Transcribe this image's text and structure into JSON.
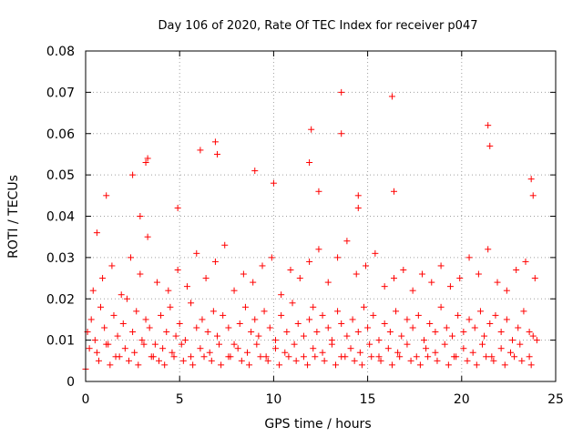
{
  "chart_data": {
    "type": "scatter",
    "title": "Day 106 of 2020, Rate Of TEC Index for receiver p047",
    "xlabel": "GPS time / hours",
    "ylabel": "ROTI / TECUs",
    "xlim": [
      0,
      25
    ],
    "ylim": [
      0,
      0.08
    ],
    "xticks": [
      0,
      5,
      10,
      15,
      20,
      25
    ],
    "yticks": [
      0,
      0.01,
      0.02,
      0.03,
      0.04,
      0.05,
      0.06,
      0.07,
      0.08
    ],
    "xtick_labels": [
      "0",
      "5",
      "10",
      "15",
      "20",
      "25"
    ],
    "ytick_labels": [
      "0",
      "0.01",
      "0.02",
      "0.03",
      "0.04",
      "0.05",
      "0.06",
      "0.07",
      "0.08"
    ],
    "grid": true,
    "marker": "+",
    "marker_color": "#ff0000",
    "series": [
      {
        "x": [
          0.1,
          0.3,
          0.5,
          0.8,
          1.0,
          1.2,
          1.5,
          1.7,
          2.0,
          2.2,
          2.5,
          2.7,
          3.0,
          3.2,
          3.4,
          3.7,
          4.0,
          4.3,
          4.5,
          4.8,
          5.0,
          5.3,
          5.6,
          5.9,
          6.2,
          6.5,
          6.8,
          7.0,
          7.3,
          7.6,
          7.9,
          8.2,
          8.5,
          8.8,
          9.0,
          9.2,
          9.5,
          9.8,
          10.1,
          10.4,
          10.7,
          11.0,
          11.3,
          11.6,
          11.9,
          12.1,
          12.3,
          12.6,
          12.9,
          13.1,
          13.4,
          13.6,
          13.9,
          14.2,
          14.5,
          14.8,
          15.0,
          15.3,
          15.6,
          15.9,
          16.2,
          16.5,
          16.8,
          17.1,
          17.4,
          17.7,
          18.0,
          18.3,
          18.6,
          18.9,
          19.2,
          19.5,
          19.8,
          20.1,
          20.4,
          20.7,
          21.0,
          21.2,
          21.5,
          21.8,
          22.1,
          22.4,
          22.7,
          23.0,
          23.3,
          23.6,
          23.8,
          0.2,
          0.6,
          1.1,
          1.6,
          2.1,
          2.6,
          3.1,
          3.6,
          4.1,
          4.6,
          5.1,
          5.6,
          6.1,
          6.6,
          7.1,
          7.6,
          8.1,
          8.6,
          9.1,
          9.6,
          10.1,
          10.6,
          11.1,
          11.6,
          12.1,
          12.6,
          13.1,
          13.6,
          14.1,
          14.6,
          15.1,
          15.6,
          16.1,
          16.6,
          17.1,
          17.6,
          18.1,
          18.6,
          19.1,
          19.6,
          20.1,
          20.6,
          21.1,
          21.6,
          22.1,
          22.6,
          23.1,
          23.6,
          0.4,
          0.9,
          1.4,
          1.9,
          2.4,
          2.9,
          3.3,
          3.8,
          4.4,
          4.9,
          5.4,
          5.9,
          6.4,
          6.9,
          7.4,
          7.9,
          8.4,
          8.9,
          9.4,
          9.9,
          10.4,
          10.9,
          11.4,
          11.9,
          12.4,
          12.9,
          13.4,
          13.9,
          14.4,
          14.9,
          15.4,
          15.9,
          16.4,
          16.9,
          17.4,
          17.9,
          18.4,
          18.9,
          19.4,
          19.9,
          20.4,
          20.9,
          21.4,
          21.9,
          22.4,
          22.9,
          23.4,
          23.9,
          0.7,
          1.3,
          1.8,
          2.3,
          2.8,
          3.5,
          3.9,
          4.2,
          4.7,
          5.2,
          5.7,
          6.3,
          6.7,
          7.2,
          7.7,
          8.3,
          8.7,
          9.3,
          9.7,
          10.3,
          10.8,
          11.2,
          11.8,
          12.2,
          12.7,
          13.3,
          13.8,
          14.3,
          14.7,
          15.2,
          15.7,
          16.3,
          16.7,
          17.3,
          17.8,
          18.2,
          18.7,
          19.3,
          19.7,
          20.3,
          20.8,
          21.3,
          21.7,
          22.3,
          22.8,
          23.2,
          23.7,
          0.6,
          1.1,
          2.5,
          2.9,
          3.2,
          3.3,
          4.9,
          6.1,
          6.9,
          7.0,
          9.0,
          10.0,
          11.9,
          12.0,
          12.4,
          13.6,
          13.6,
          14.5,
          14.5,
          16.3,
          16.4,
          21.4,
          21.5,
          23.7,
          23.8,
          0.0,
          24.0
        ],
        "y": [
          0.012,
          0.015,
          0.01,
          0.018,
          0.013,
          0.009,
          0.016,
          0.011,
          0.014,
          0.02,
          0.012,
          0.017,
          0.01,
          0.015,
          0.013,
          0.009,
          0.016,
          0.012,
          0.018,
          0.011,
          0.014,
          0.01,
          0.019,
          0.013,
          0.015,
          0.012,
          0.017,
          0.011,
          0.016,
          0.013,
          0.009,
          0.014,
          0.018,
          0.012,
          0.015,
          0.011,
          0.017,
          0.013,
          0.01,
          0.016,
          0.012,
          0.019,
          0.014,
          0.011,
          0.015,
          0.018,
          0.012,
          0.016,
          0.013,
          0.01,
          0.017,
          0.014,
          0.011,
          0.015,
          0.012,
          0.018,
          0.013,
          0.016,
          0.01,
          0.014,
          0.012,
          0.017,
          0.011,
          0.015,
          0.013,
          0.016,
          0.01,
          0.014,
          0.012,
          0.018,
          0.013,
          0.011,
          0.016,
          0.012,
          0.015,
          0.013,
          0.017,
          0.011,
          0.014,
          0.016,
          0.012,
          0.015,
          0.01,
          0.013,
          0.017,
          0.012,
          0.011,
          0.008,
          0.007,
          0.009,
          0.006,
          0.008,
          0.007,
          0.009,
          0.006,
          0.008,
          0.007,
          0.009,
          0.006,
          0.008,
          0.007,
          0.009,
          0.006,
          0.008,
          0.007,
          0.009,
          0.006,
          0.008,
          0.007,
          0.009,
          0.006,
          0.008,
          0.007,
          0.009,
          0.006,
          0.008,
          0.007,
          0.009,
          0.006,
          0.008,
          0.007,
          0.009,
          0.006,
          0.008,
          0.007,
          0.009,
          0.006,
          0.008,
          0.007,
          0.009,
          0.006,
          0.008,
          0.007,
          0.009,
          0.006,
          0.022,
          0.025,
          0.028,
          0.021,
          0.03,
          0.026,
          0.035,
          0.024,
          0.022,
          0.027,
          0.023,
          0.031,
          0.025,
          0.029,
          0.033,
          0.022,
          0.026,
          0.024,
          0.028,
          0.03,
          0.021,
          0.027,
          0.025,
          0.029,
          0.032,
          0.024,
          0.03,
          0.034,
          0.026,
          0.028,
          0.031,
          0.023,
          0.025,
          0.027,
          0.022,
          0.026,
          0.024,
          0.028,
          0.023,
          0.025,
          0.03,
          0.026,
          0.032,
          0.024,
          0.022,
          0.027,
          0.029,
          0.025,
          0.005,
          0.004,
          0.006,
          0.005,
          0.004,
          0.006,
          0.005,
          0.004,
          0.006,
          0.005,
          0.004,
          0.006,
          0.005,
          0.004,
          0.006,
          0.005,
          0.004,
          0.006,
          0.005,
          0.004,
          0.006,
          0.005,
          0.004,
          0.006,
          0.005,
          0.004,
          0.006,
          0.005,
          0.004,
          0.006,
          0.005,
          0.004,
          0.006,
          0.005,
          0.004,
          0.006,
          0.005,
          0.004,
          0.006,
          0.005,
          0.004,
          0.006,
          0.005,
          0.004,
          0.006,
          0.005,
          0.004,
          0.036,
          0.045,
          0.05,
          0.04,
          0.053,
          0.054,
          0.042,
          0.056,
          0.058,
          0.055,
          0.051,
          0.048,
          0.053,
          0.061,
          0.046,
          0.06,
          0.07,
          0.045,
          0.042,
          0.069,
          0.046,
          0.062,
          0.057,
          0.049,
          0.045,
          0.003,
          0.01
        ]
      }
    ]
  }
}
